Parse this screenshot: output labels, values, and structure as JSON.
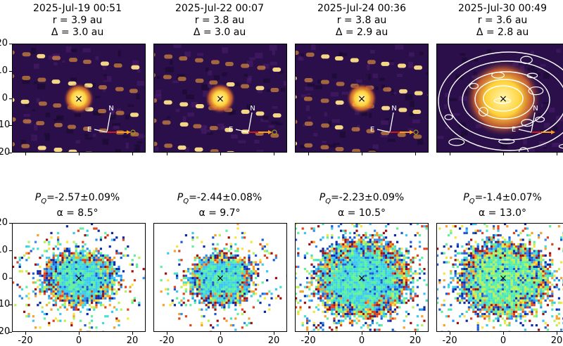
{
  "top_titles": [
    {
      "date": "2025-Jul-19 00:51",
      "r": "r = 3.9 au",
      "delta": "Δ = 3.0 au"
    },
    {
      "date": "2025-Jul-22 00:07",
      "r": "r = 3.8 au",
      "delta": "Δ = 3.0 au"
    },
    {
      "date": "2025-Jul-24 00:36",
      "r": "r = 3.8 au",
      "delta": "Δ = 2.9 au"
    },
    {
      "date": "2025-Jul-30 00:49",
      "r": "r = 3.6 au",
      "delta": "Δ = 2.8 au"
    }
  ],
  "bottom_titles": [
    {
      "pq_value": "=-2.57±0.09%",
      "alpha": "α = 8.5°"
    },
    {
      "pq_value": "=-2.44±0.08%",
      "alpha": "α = 9.7°"
    },
    {
      "pq_value": "=-2.23±0.09%",
      "alpha": "α = 10.5°"
    },
    {
      "pq_value": "=-1.4±0.07%",
      "alpha": "α = 13.0°"
    }
  ],
  "compass": {
    "north": "N",
    "east": "E"
  },
  "target_marker": "×",
  "colors": {
    "intensity_bg": "#2a0f4a",
    "star_trail": "#f7a03a",
    "core": "#fff7b0",
    "contour": "#ffffff"
  },
  "chart_data": {
    "type": "heatmap",
    "rows": [
      {
        "name": "intensity",
        "panels": [
          "2025-Jul-19 00:51",
          "2025-Jul-22 00:07",
          "2025-Jul-24 00:36",
          "2025-Jul-30 00:49"
        ]
      },
      {
        "name": "polarization",
        "panels": [
          "P_Q=-2.57±0.09%",
          "P_Q=-2.44±0.08%",
          "P_Q=-2.23±0.09%",
          "P_Q=-1.4±0.07%"
        ]
      }
    ],
    "heliocentric_distance_au": [
      3.9,
      3.8,
      3.8,
      3.6
    ],
    "geocentric_distance_au": [
      3.0,
      3.0,
      2.9,
      2.8
    ],
    "pq_percent": [
      -2.57,
      -2.44,
      -2.23,
      -1.4
    ],
    "pq_error_percent": [
      0.09,
      0.08,
      0.09,
      0.07
    ],
    "phase_angle_deg": [
      8.5,
      9.7,
      10.5,
      13.0
    ],
    "xlim": [
      -25,
      25
    ],
    "ylim": [
      -20,
      20
    ],
    "x_ticks": [
      "-20",
      "0",
      "20"
    ],
    "x_ticks_labeled": [
      "-20",
      "0",
      "20"
    ],
    "y_ticks_top": [
      "20",
      "10",
      "0",
      "-10",
      "-20"
    ],
    "y_ticks_bottom": [
      "20",
      "10",
      "0",
      "-10",
      "-20"
    ],
    "grid": false
  }
}
